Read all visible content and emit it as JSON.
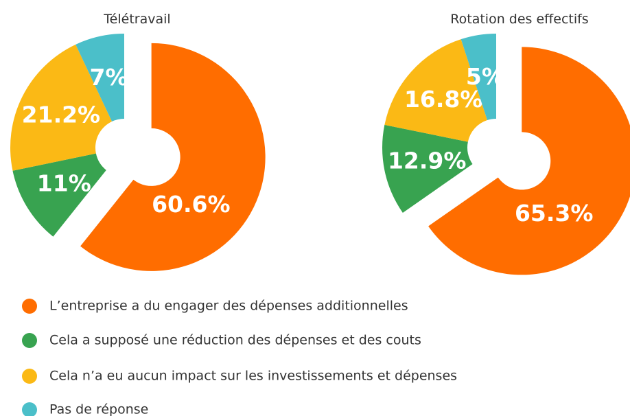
{
  "chart_data": [
    {
      "type": "pie",
      "title": "Télétravail",
      "values": [
        60.6,
        11,
        21.2,
        7
      ],
      "value_labels": [
        "60.6%",
        "11%",
        "21.2%",
        "7%"
      ]
    },
    {
      "type": "pie",
      "title": "Rotation des effectifs",
      "values": [
        65.3,
        12.9,
        16.8,
        5
      ],
      "value_labels": [
        "65.3%",
        "12.9%",
        "16.8%",
        "5%"
      ]
    }
  ],
  "legend": {
    "labels": [
      "L’entreprise a du engager des dépenses additionnelles",
      "Cela a supposé une réduction des dépenses et des couts",
      "Cela n’a eu aucun impact sur les investissements et dépenses",
      "Pas de réponse"
    ],
    "colors": [
      "#ff6d00",
      "#38a350",
      "#fbb915",
      "#4bbfc9"
    ]
  }
}
